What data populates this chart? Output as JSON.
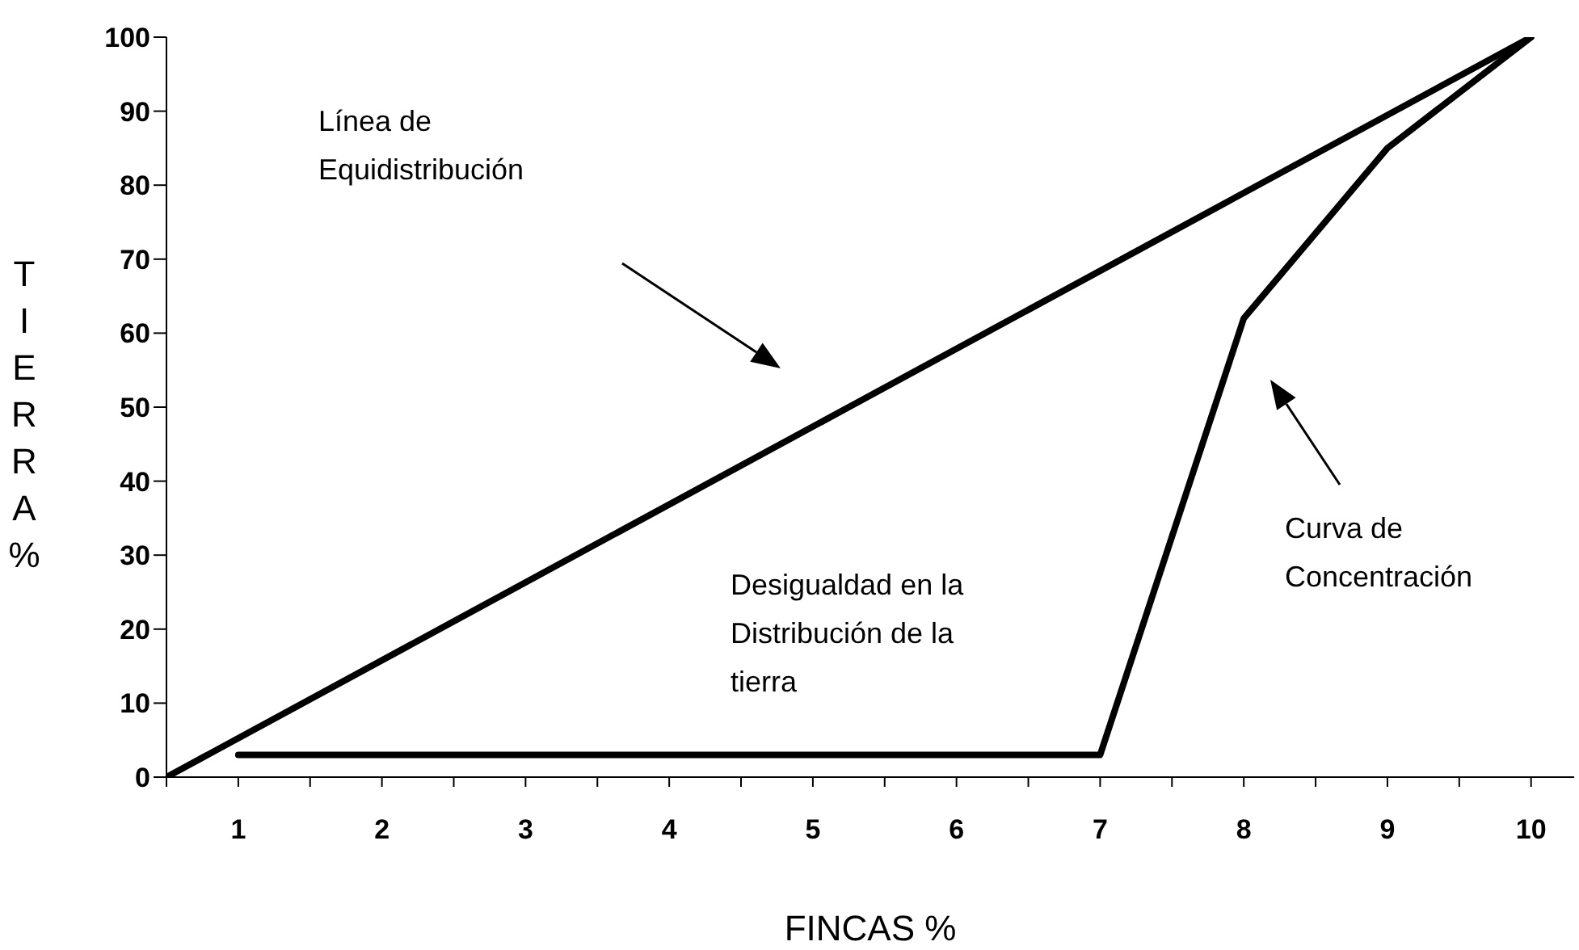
{
  "chart_data": {
    "type": "line",
    "xlabel": "FINCAS %",
    "ylabel": "TIERRA %",
    "xlim": [
      0.5,
      10.3
    ],
    "xticks": [
      {
        "value": 0.5,
        "label": null
      },
      1,
      {
        "value": 1.5,
        "label": null
      },
      2,
      {
        "value": 2.5,
        "label": null
      },
      3,
      {
        "value": 3.5,
        "label": null
      },
      4,
      {
        "value": 4.5,
        "label": null
      },
      5,
      {
        "value": 5.5,
        "label": null
      },
      6,
      {
        "value": 6.5,
        "label": null
      },
      7,
      {
        "value": 7.5,
        "label": null
      },
      8,
      {
        "value": 8.5,
        "label": null
      },
      9,
      {
        "value": 9.5,
        "label": null
      },
      10
    ],
    "ylim": [
      0,
      100
    ],
    "yticks": [
      0,
      10,
      20,
      30,
      40,
      50,
      60,
      70,
      80,
      90,
      100
    ],
    "marker": "none",
    "line_style": "solid",
    "series": [
      {
        "color": "#000000",
        "x": [
          0.5,
          10
        ],
        "values": [
          0,
          100
        ]
      },
      {
        "color": "#000000",
        "x": [
          1,
          7,
          8,
          9,
          10
        ],
        "values": [
          3,
          3,
          62,
          85,
          100
        ]
      }
    ],
    "annotations": [
      "Línea de\nEquidistribución",
      "Desigualdad en la\nDistribución de la\ntierra",
      "Curva de\nConcentración"
    ]
  }
}
